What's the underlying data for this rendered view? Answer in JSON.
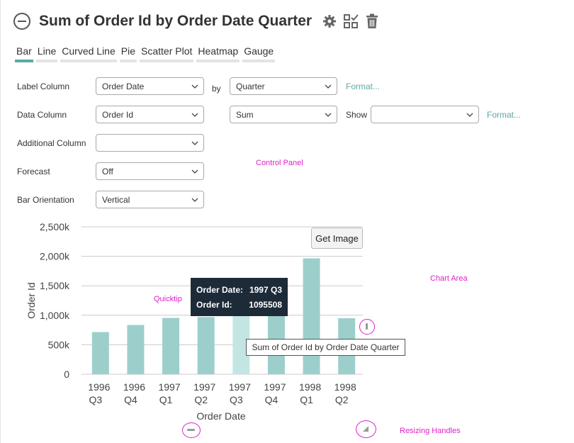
{
  "header": {
    "title": "Sum of Order Id by Order Date Quarter",
    "icons": [
      "minus-circle-icon",
      "gear-icon",
      "checklist-icon",
      "trash-icon"
    ]
  },
  "tabs": [
    "Bar",
    "Line",
    "Curved Line",
    "Pie",
    "Scatter Plot",
    "Heatmap",
    "Gauge"
  ],
  "active_tab": "Bar",
  "controls": {
    "label_column": {
      "label": "Label Column",
      "value": "Order Date",
      "by_text": "by",
      "group_value": "Quarter",
      "format_link": "Format..."
    },
    "data_column": {
      "label": "Data Column",
      "value": "Order Id",
      "aggregate_value": "Sum",
      "show_label": "Show",
      "show_value": "",
      "format_link": "Format..."
    },
    "additional_column": {
      "label": "Additional Column",
      "value": ""
    },
    "forecast": {
      "label": "Forecast",
      "value": "Off"
    },
    "bar_orientation": {
      "label": "Bar Orientation",
      "value": "Vertical"
    }
  },
  "annotations": {
    "control_panel": "Control Panel",
    "chart_area": "Chart Area",
    "quicktip": "Quicktip",
    "resizing_handles": "Resizing Handles"
  },
  "get_image_label": "Get Image",
  "quicktip": {
    "k1": "Order Date:",
    "v1": "1997 Q3",
    "k2": "Order Id:",
    "v2": "1095508"
  },
  "tooltip_text": "Sum of Order Id by Order Date Quarter",
  "colors": {
    "bar": "#9ccfcc",
    "bar_highlight": "#c4e6e3",
    "accent": "#5aa9a6",
    "annotation": "#e020c8"
  },
  "chart_data": {
    "type": "bar",
    "categories": [
      [
        "1996",
        "Q3"
      ],
      [
        "1996",
        "Q4"
      ],
      [
        "1997",
        "Q1"
      ],
      [
        "1997",
        "Q2"
      ],
      [
        "1997",
        "Q3"
      ],
      [
        "1997",
        "Q4"
      ],
      [
        "1998",
        "Q1"
      ],
      [
        "1998",
        "Q2"
      ]
    ],
    "values": [
      715000,
      835000,
      955000,
      970000,
      1095508,
      1085000,
      1965000,
      950000
    ],
    "highlight_index": 4,
    "ylim": [
      0,
      2500000
    ],
    "yticks": [
      0,
      500000,
      1000000,
      1500000,
      2000000,
      2500000
    ],
    "ytick_labels": [
      "0",
      "500k",
      "1,000k",
      "1,500k",
      "2,000k",
      "2,500k"
    ],
    "xlabel": "Order Date",
    "ylabel": "Order Id",
    "grid": true
  }
}
